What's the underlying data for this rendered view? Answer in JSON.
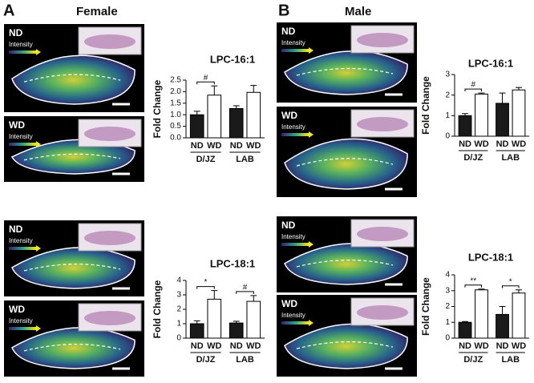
{
  "panels": [
    {
      "label": "A",
      "title": "Female",
      "images": [
        "ND",
        "WD",
        "ND",
        "WD"
      ]
    },
    {
      "label": "B",
      "title": "Male",
      "images": [
        "ND",
        "WD",
        "ND",
        "WD"
      ]
    }
  ],
  "intensity_label": "Intensity",
  "chart_data": [
    {
      "type": "bar",
      "title": "LPC-16:1",
      "y_label": "Fold Change",
      "categories": [
        "ND",
        "WD",
        "ND",
        "WD"
      ],
      "groups": [
        "D/JZ",
        "LAB"
      ],
      "values": [
        1.0,
        1.85,
        1.27,
        1.97
      ],
      "errors": [
        0.15,
        0.4,
        0.12,
        0.3
      ],
      "colors": [
        "#1a1a1a",
        "#ffffff",
        "#1a1a1a",
        "#ffffff"
      ],
      "group_annotations": [
        "#",
        null
      ],
      "ylim": [
        0,
        2.5
      ],
      "yticks": [
        {
          "value": 0,
          "label": "0.0"
        },
        0.5,
        {
          "value": 1,
          "label": "1.0"
        },
        1.5,
        {
          "value": 2,
          "label": "2.0"
        },
        2.5
      ]
    },
    {
      "type": "bar",
      "title": "LPC-18:1",
      "y_label": "Fold Change",
      "categories": [
        "ND",
        "WD",
        "ND",
        "WD"
      ],
      "groups": [
        "D/JZ",
        "LAB"
      ],
      "values": [
        1.0,
        2.7,
        1.05,
        2.55
      ],
      "errors": [
        0.2,
        0.6,
        0.12,
        0.4
      ],
      "colors": [
        "#1a1a1a",
        "#ffffff",
        "#1a1a1a",
        "#ffffff"
      ],
      "group_annotations": [
        "*",
        "#"
      ],
      "ylim": [
        0,
        4
      ],
      "yticks": [
        0,
        1,
        2,
        3,
        4
      ]
    },
    {
      "type": "bar",
      "title": "LPC-16:1",
      "y_label": "Fold Change",
      "categories": [
        "ND",
        "WD",
        "ND",
        "WD"
      ],
      "groups": [
        "D/JZ",
        "LAB"
      ],
      "values": [
        1.0,
        2.05,
        1.6,
        2.25
      ],
      "errors": [
        0.1,
        0.05,
        0.5,
        0.12
      ],
      "colors": [
        "#1a1a1a",
        "#ffffff",
        "#1a1a1a",
        "#ffffff"
      ],
      "group_annotations": [
        "#",
        null
      ],
      "ylim": [
        0,
        3
      ],
      "yticks": [
        0,
        1,
        2,
        3
      ]
    },
    {
      "type": "bar",
      "title": "LPC-18:1",
      "y_label": "Fold Change",
      "categories": [
        "ND",
        "WD",
        "ND",
        "WD"
      ],
      "groups": [
        "D/JZ",
        "LAB"
      ],
      "values": [
        1.0,
        3.05,
        1.5,
        2.85
      ],
      "errors": [
        0.05,
        0.05,
        0.5,
        0.2
      ],
      "colors": [
        "#1a1a1a",
        "#ffffff",
        "#1a1a1a",
        "#ffffff"
      ],
      "group_annotations": [
        "**",
        "*"
      ],
      "ylim": [
        0,
        4
      ],
      "yticks": [
        0,
        1,
        2,
        3,
        4
      ]
    }
  ]
}
